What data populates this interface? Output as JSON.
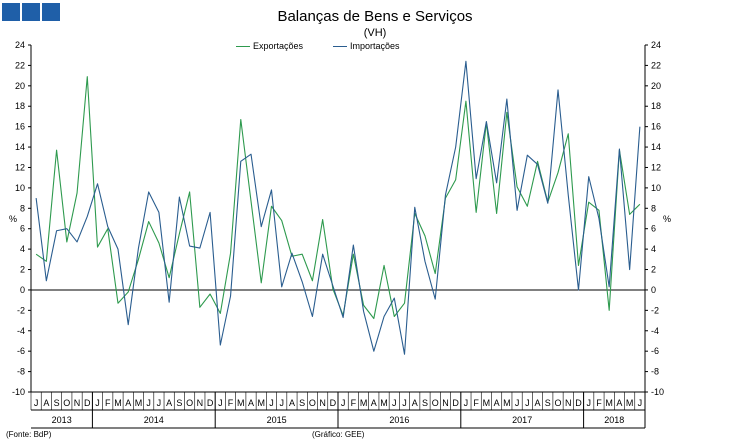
{
  "header": {
    "title": "Balanças de Bens e Serviços",
    "subtitle": "(VH)"
  },
  "footer": {
    "source": "(Fonte: BdP)",
    "credit": "(Gráfico: GEE)"
  },
  "colors": {
    "logo": "#1f5fa8",
    "exportacoes": "#2e9a4e",
    "importacoes": "#2a5d8f",
    "axis": "#000000"
  },
  "chart_data": {
    "type": "line",
    "title": "Balanças de Bens e Serviços",
    "subtitle": "(VH)",
    "ylabel": "%",
    "ylabel_right": "%",
    "ylim": [
      -10,
      24
    ],
    "yticks": [
      -10,
      -8,
      -6,
      -4,
      -2,
      0,
      2,
      4,
      6,
      8,
      10,
      12,
      14,
      16,
      18,
      20,
      22,
      24
    ],
    "grid": false,
    "legend_position": "top-center",
    "x": [
      "J",
      "A",
      "S",
      "O",
      "N",
      "D",
      "J",
      "F",
      "M",
      "A",
      "M",
      "J",
      "J",
      "A",
      "S",
      "O",
      "N",
      "D",
      "J",
      "F",
      "M",
      "A",
      "M",
      "J",
      "J",
      "A",
      "S",
      "O",
      "N",
      "D",
      "J",
      "F",
      "M",
      "A",
      "M",
      "J",
      "J",
      "A",
      "S",
      "O",
      "N",
      "D",
      "J",
      "F",
      "M",
      "A",
      "M",
      "J",
      "J",
      "A",
      "S",
      "O",
      "N",
      "D",
      "J",
      "F",
      "M",
      "A",
      "M",
      "J"
    ],
    "years": [
      {
        "label": "2013",
        "start": 0,
        "end": 5
      },
      {
        "label": "2014",
        "start": 6,
        "end": 17
      },
      {
        "label": "2015",
        "start": 18,
        "end": 29
      },
      {
        "label": "2016",
        "start": 30,
        "end": 41
      },
      {
        "label": "2017",
        "start": 42,
        "end": 53
      },
      {
        "label": "2018",
        "start": 54,
        "end": 59
      }
    ],
    "series": [
      {
        "name": "Exportações",
        "values": [
          3.5,
          2.8,
          13.7,
          4.7,
          9.5,
          20.9,
          4.2,
          6.0,
          -1.3,
          -0.2,
          3.0,
          6.7,
          4.6,
          1.2,
          5.5,
          9.6,
          -1.7,
          -0.4,
          -2.3,
          3.6,
          16.7,
          8.7,
          0.7,
          8.2,
          6.8,
          3.3,
          3.5,
          0.9,
          6.9,
          0.1,
          -2.5,
          3.5,
          -1.5,
          -2.8,
          2.4,
          -2.6,
          -1.3,
          7.5,
          5.3,
          1.6,
          9.0,
          10.8,
          18.5,
          7.6,
          16.4,
          7.5,
          17.4,
          10.1,
          8.2,
          12.6,
          8.6,
          11.5,
          15.3,
          2.4,
          8.6,
          7.8,
          -2.0,
          13.7,
          7.4,
          8.4
        ]
      },
      {
        "name": "Importações",
        "values": [
          9.0,
          0.9,
          5.8,
          6.0,
          4.7,
          7.2,
          10.4,
          6.2,
          4.0,
          -3.4,
          4.1,
          9.6,
          7.6,
          -1.2,
          9.1,
          4.3,
          4.1,
          7.6,
          -5.4,
          -0.6,
          12.6,
          13.3,
          6.2,
          9.8,
          0.3,
          3.6,
          0.8,
          -2.6,
          3.5,
          0.4,
          -2.7,
          4.4,
          -2.1,
          -6.0,
          -2.6,
          -0.8,
          -6.3,
          8.1,
          2.8,
          -0.9,
          9.3,
          14.0,
          22.4,
          10.9,
          16.5,
          10.5,
          18.7,
          7.8,
          13.2,
          12.3,
          8.5,
          19.6,
          9.3,
          0.0,
          11.1,
          7.0,
          0.3,
          13.8,
          2.0,
          16.0
        ]
      }
    ]
  }
}
